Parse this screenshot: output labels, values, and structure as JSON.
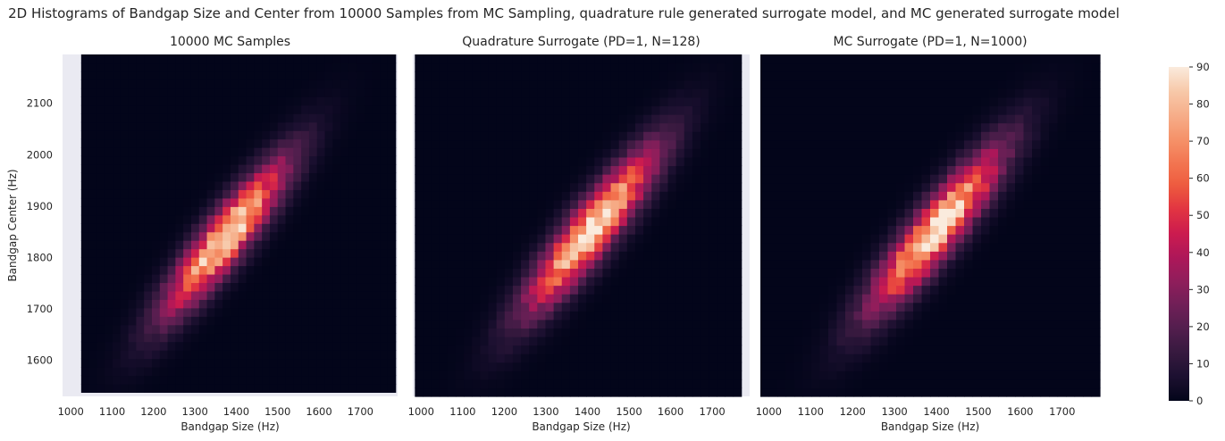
{
  "figure": {
    "suptitle": "2D Histograms of Bandgap Size and Center from 10000 Samples from MC Sampling, quadrature rule generated surrogate model, and MC generated surrogate model"
  },
  "chart_data": [
    {
      "type": "heatmap",
      "title": "10000 MC Samples",
      "xlabel": "Bandgap Size (Hz)",
      "ylabel": "Bandgap Center (Hz)",
      "xlim": [
        980,
        1790
      ],
      "ylim": [
        1530,
        2195
      ],
      "xticks": [
        1000,
        1100,
        1200,
        1300,
        1400,
        1500,
        1600,
        1700
      ],
      "yticks": [
        1600,
        1700,
        1800,
        1900,
        2000,
        2100
      ],
      "bin_range_x": [
        1025,
        1785
      ],
      "bin_range_y": [
        1538,
        2195
      ],
      "bins": 40,
      "peak": {
        "x": 1375,
        "y": 1840,
        "count": 90
      },
      "spread": {
        "sd_x": 100,
        "sd_y": 100,
        "corr": 0.9
      },
      "samples": 10000,
      "axes_background": "#eaeaf2"
    },
    {
      "type": "heatmap",
      "title": "Quadrature Surrogate (PD=1, N=128)",
      "xlabel": "Bandgap Size (Hz)",
      "ylabel": "",
      "xlim": [
        980,
        1790
      ],
      "ylim": [
        1530,
        2195
      ],
      "xticks": [
        1000,
        1100,
        1200,
        1300,
        1400,
        1500,
        1600,
        1700
      ],
      "yticks": [],
      "bin_range_x": [
        985,
        1770
      ],
      "bin_range_y": [
        1530,
        2195
      ],
      "bins": 40,
      "peak": {
        "x": 1410,
        "y": 1855,
        "count": 90
      },
      "spread": {
        "sd_x": 105,
        "sd_y": 105,
        "corr": 0.9
      },
      "samples": 10000,
      "axes_background": "#eaeaf2"
    },
    {
      "type": "heatmap",
      "title": "MC Surrogate (PD=1, N=1000)",
      "xlabel": "Bandgap Size (Hz)",
      "ylabel": "",
      "xlim": [
        980,
        1790
      ],
      "ylim": [
        1530,
        2195
      ],
      "xticks": [
        1000,
        1100,
        1200,
        1300,
        1400,
        1500,
        1600,
        1700
      ],
      "yticks": [],
      "bin_range_x": [
        980,
        1790
      ],
      "bin_range_y": [
        1530,
        2195
      ],
      "bins": 40,
      "peak": {
        "x": 1400,
        "y": 1855,
        "count": 90
      },
      "spread": {
        "sd_x": 105,
        "sd_y": 105,
        "corr": 0.9
      },
      "samples": 10000,
      "axes_background": "#eaeaf2"
    }
  ],
  "colorbar": {
    "min": 0,
    "max": 90,
    "ticks": [
      0,
      10,
      20,
      30,
      40,
      50,
      60,
      70,
      80,
      90
    ],
    "colormap": "rocket",
    "colors": [
      "#03051a",
      "#1c1030",
      "#36193e",
      "#511e4d",
      "#701f57",
      "#8f1e5b",
      "#ad1759",
      "#cb1b4f",
      "#e13342",
      "#ed5a3e",
      "#f37651",
      "#f5936a",
      "#f6ae8a",
      "#f7c9aa",
      "#faebdd"
    ]
  }
}
